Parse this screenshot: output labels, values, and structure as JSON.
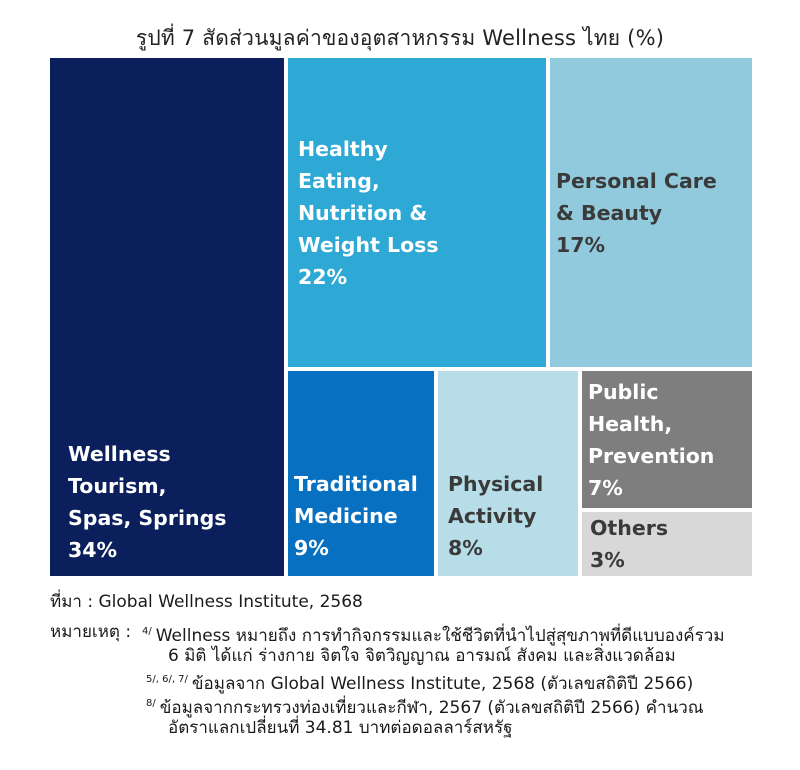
{
  "chart_data": {
    "type": "treemap",
    "title": "รูปที่ 7 สัดส่วนมูลค่าของอุตสาหกรรม Wellness ไทย (%)",
    "items": [
      {
        "name": "Wellness\nTourism,\nSpas, Springs",
        "value": 34,
        "label": "34%",
        "color": "#0b1f5c",
        "text_color": "#ffffff"
      },
      {
        "name": "Healthy\nEating,\nNutrition &\nWeight Loss",
        "value": 22,
        "label": "22%",
        "color": "#2ea8d5",
        "text_color": "#ffffff"
      },
      {
        "name": "Personal Care\n& Beauty",
        "value": 17,
        "label": "17%",
        "color": "#92cadd",
        "text_color": "#3a3a3a"
      },
      {
        "name": "Traditional\nMedicine",
        "value": 9,
        "label": "9%",
        "color": "#0870c0",
        "text_color": "#ffffff"
      },
      {
        "name": "Physical\nActivity",
        "value": 8,
        "label": "8%",
        "color": "#b7dde8",
        "text_color": "#3a3a3a"
      },
      {
        "name": "Public\nHealth,\nPrevention",
        "value": 7,
        "label": "7%",
        "color": "#7e7e7e",
        "text_color": "#ffffff"
      },
      {
        "name": "Others",
        "value": 3,
        "label": "3%",
        "color": "#d8d8d8",
        "text_color": "#3a3a3a"
      }
    ]
  },
  "notes": {
    "source": "ที่มา : Global Wellness Institute, 2568",
    "remark_label": "หมายเหตุ :",
    "note1_ref": "4/",
    "note1_line1": "Wellness หมายถึง การทำกิจกรรมและใช้ชีวิตที่นำไปสู่สุขภาพที่ดีแบบองค์รวม",
    "note1_line2": "6 มิติ ได้แก่ ร่างกาย จิตใจ จิตวิญญาณ อารมณ์ สังคม และสิ่งแวดล้อม",
    "note2_ref": "5/, 6/, 7/",
    "note2_line1": "ข้อมูลจาก Global Wellness Institute, 2568 (ตัวเลขสถิติปี 2566)",
    "note3_ref": "8/",
    "note3_line1": "ข้อมูลจากกระทรวงท่องเที่ยวและกีฬา, 2567 (ตัวเลขสถิติปี 2566) คำนวณ",
    "note3_line2": "อัตราแลกเปลี่ยนที่ 34.81 บาทต่อดอลลาร์สหรัฐ"
  }
}
